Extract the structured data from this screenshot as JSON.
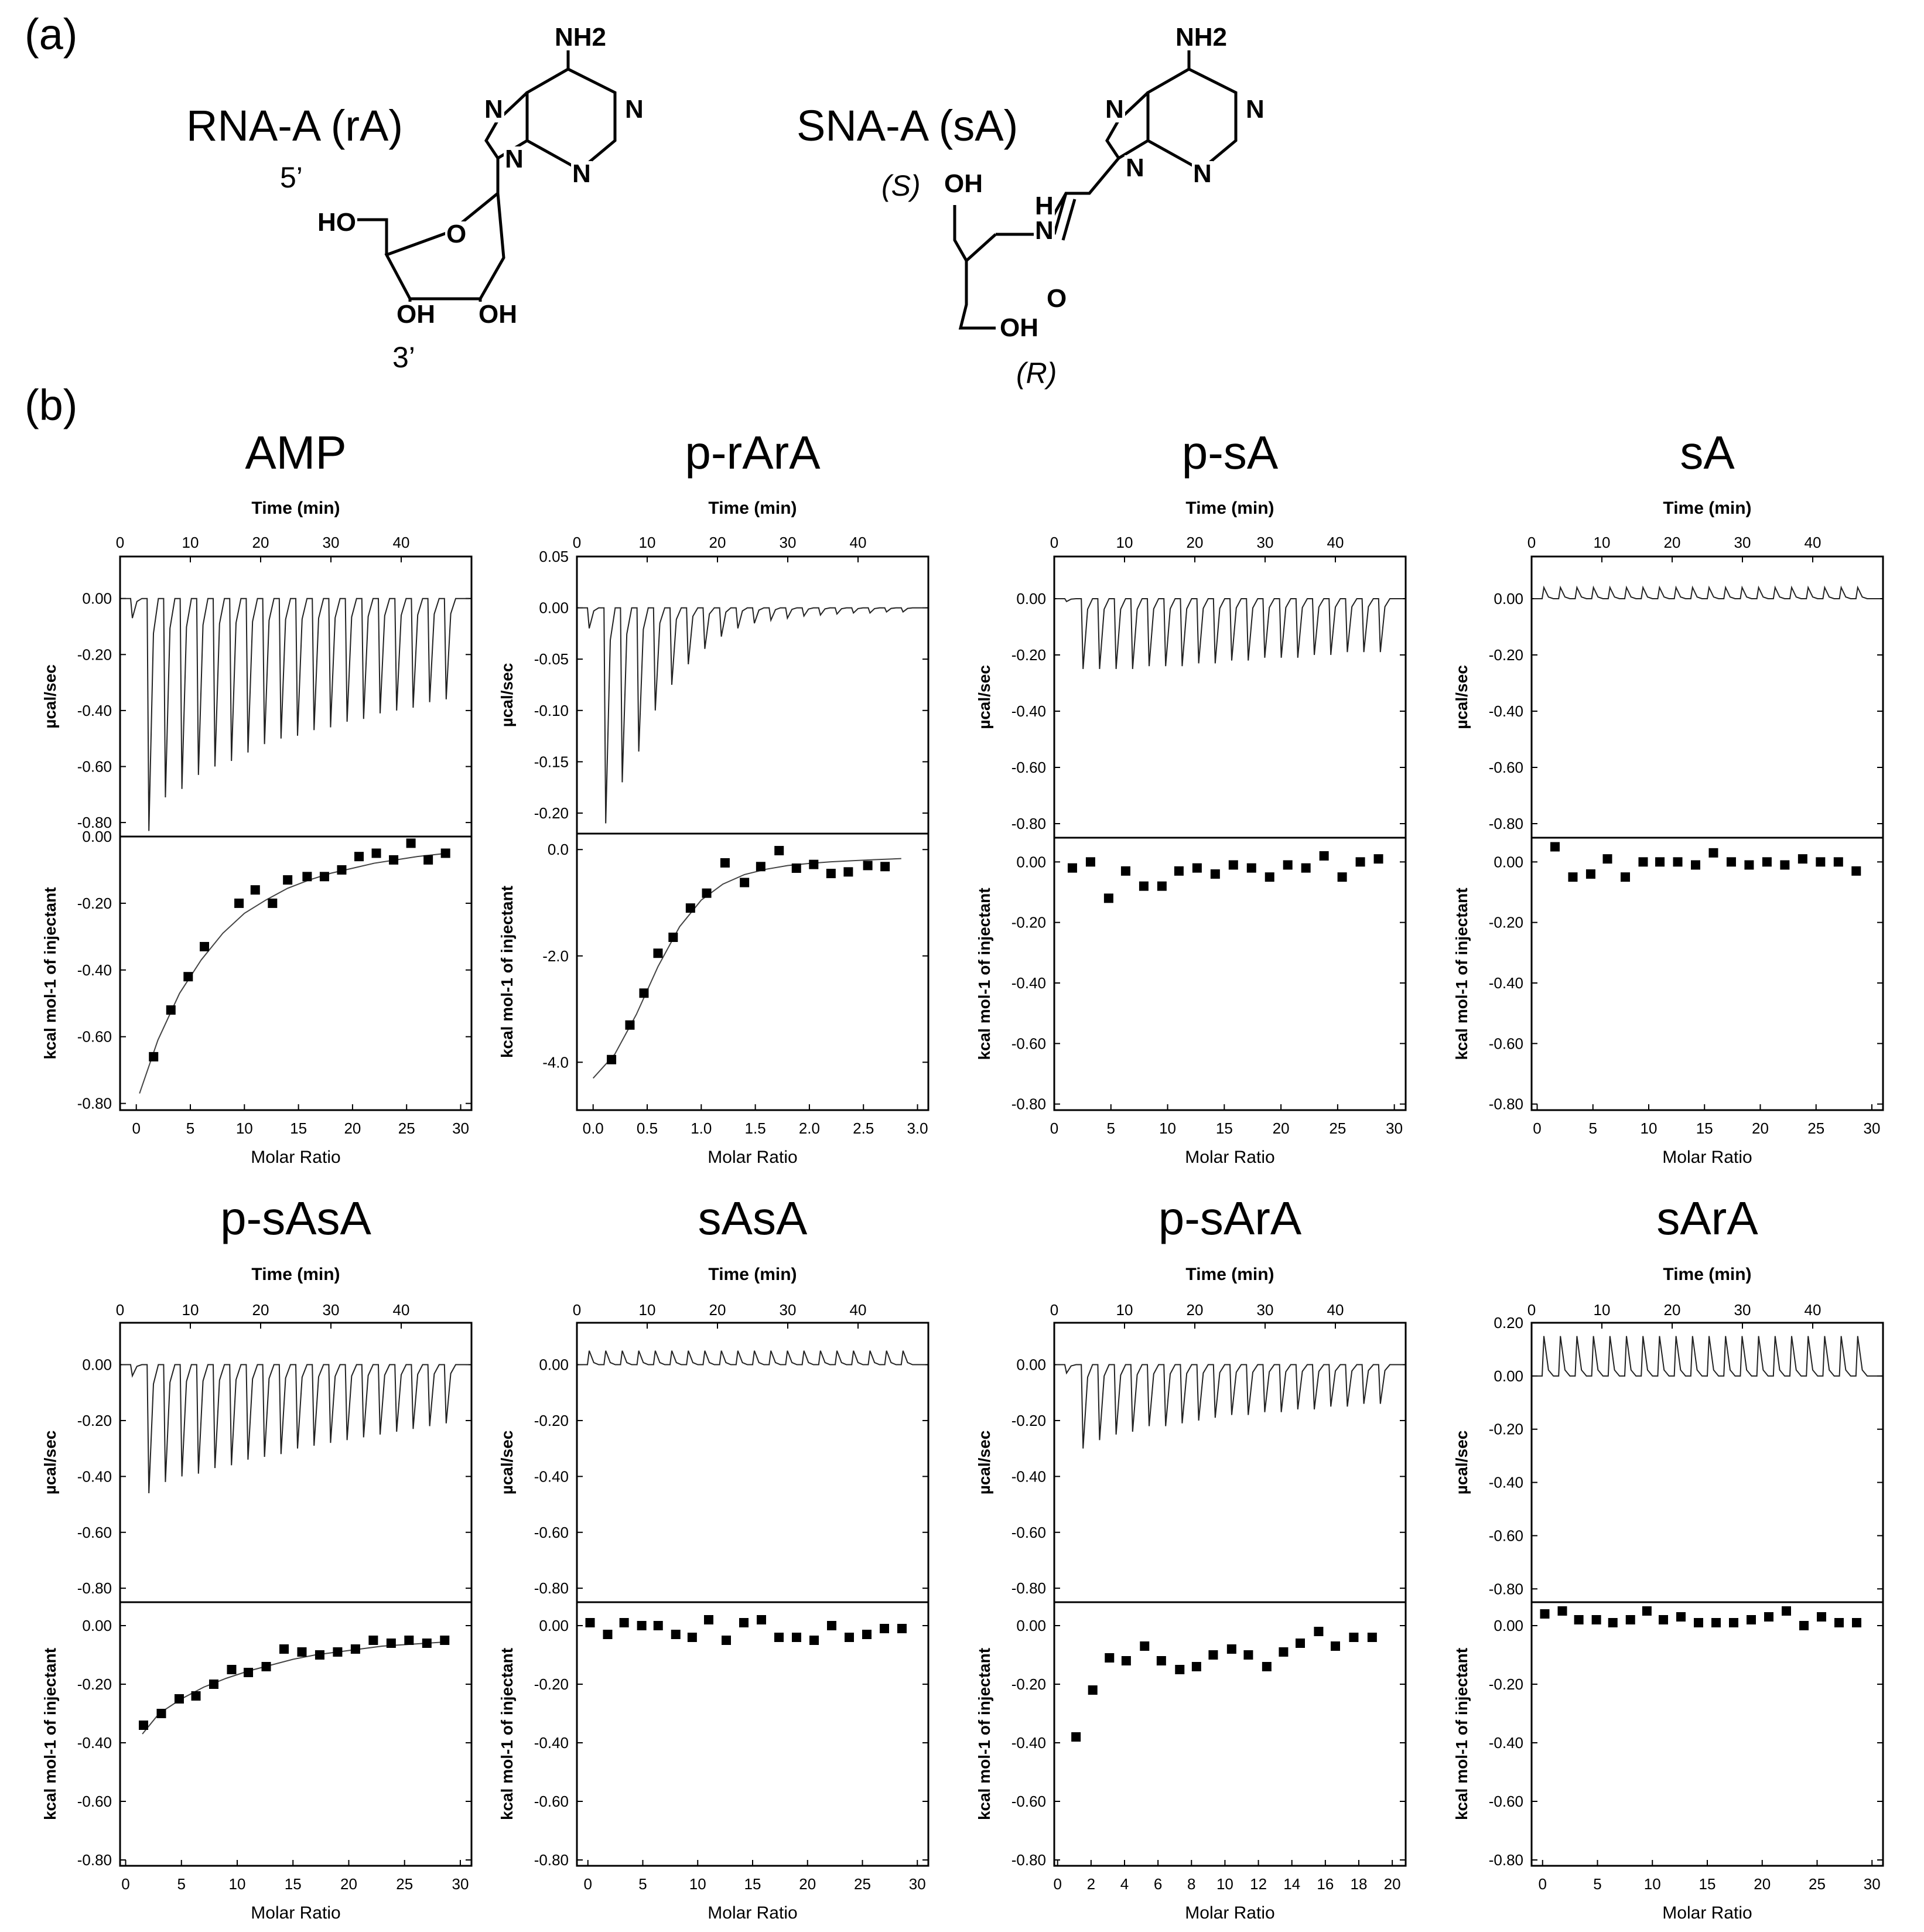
{
  "panel_labels": {
    "a": "(a)",
    "b": "(b)"
  },
  "molecules": {
    "rA": {
      "name": "RNA-A (rA)",
      "five_prime": "5’",
      "three_prime": "3’",
      "atoms": {
        "nh2": "NH2",
        "n7": "N",
        "n9": "N",
        "n1": "N",
        "n3": "N",
        "ho": "HO",
        "o_ring": "O",
        "oh3": "OH",
        "oh2": "OH"
      }
    },
    "sA": {
      "name": "SNA-A (sA)",
      "s_label": "(S)",
      "r_label": "(R)",
      "atoms": {
        "nh2": "NH2",
        "n7": "N",
        "n9": "N",
        "n1": "N",
        "n3": "N",
        "oh_top": "OH",
        "nh_h": "H",
        "nh_n": "N",
        "o_carbonyl": "O",
        "oh_bottom": "OH"
      }
    }
  },
  "chart_data": [
    {
      "type": "scatter",
      "title": "AMP",
      "top": {
        "xlabel": "Time (min)",
        "ylabel": "µcal/sec",
        "xlim": [
          0,
          50
        ],
        "ylim": [
          -0.85,
          0.15
        ],
        "xticks": [
          0,
          10,
          20,
          30,
          40
        ],
        "yticks": [
          "0.00",
          "-0.20",
          "-0.40",
          "-0.60",
          "-0.80"
        ],
        "peaks": [
          -0.07,
          -0.83,
          -0.71,
          -0.68,
          -0.63,
          -0.6,
          -0.58,
          -0.55,
          -0.52,
          -0.5,
          -0.49,
          -0.47,
          -0.46,
          -0.44,
          -0.43,
          -0.41,
          -0.4,
          -0.39,
          -0.37,
          -0.36
        ]
      },
      "bottom": {
        "xlabel": "Molar Ratio",
        "ylabel": "kcal mol-1 of injectant",
        "xlim": [
          -1.5,
          31
        ],
        "ylim": [
          -0.82,
          0.0
        ],
        "xticks": [
          0,
          5,
          10,
          15,
          20,
          25,
          30
        ],
        "yticks": [
          "0.00",
          "-0.20",
          "-0.40",
          "-0.60",
          "-0.80"
        ],
        "x": [
          1.6,
          3.2,
          4.8,
          6.3,
          9.5,
          11,
          12.6,
          14,
          15.8,
          17.4,
          19,
          20.6,
          22.2,
          23.8,
          25.4,
          27,
          28.6
        ],
        "y": [
          -0.66,
          -0.52,
          -0.42,
          -0.33,
          -0.2,
          -0.16,
          -0.2,
          -0.13,
          -0.12,
          -0.12,
          -0.1,
          -0.06,
          -0.05,
          -0.07,
          -0.02,
          -0.07,
          -0.05
        ],
        "fit_x": [
          0.3,
          2,
          4,
          6,
          8,
          10,
          12,
          14,
          16,
          18,
          20,
          22,
          24,
          26,
          28.8
        ],
        "fit_y": [
          -0.77,
          -0.61,
          -0.47,
          -0.37,
          -0.29,
          -0.23,
          -0.19,
          -0.155,
          -0.13,
          -0.11,
          -0.095,
          -0.08,
          -0.07,
          -0.06,
          -0.05
        ]
      }
    },
    {
      "type": "scatter",
      "title": "p-rArA",
      "top": {
        "xlabel": "Time (min)",
        "ylabel": "µcal/sec",
        "xlim": [
          0,
          50
        ],
        "ylim": [
          -0.22,
          0.05
        ],
        "xticks": [
          0,
          10,
          20,
          30,
          40
        ],
        "yticks": [
          "0.05",
          "0.00",
          "-0.05",
          "-0.10",
          "-0.15",
          "-0.20"
        ],
        "peaks": [
          -0.02,
          -0.21,
          -0.17,
          -0.14,
          -0.1,
          -0.075,
          -0.055,
          -0.04,
          -0.028,
          -0.02,
          -0.015,
          -0.012,
          -0.01,
          -0.008,
          -0.007,
          -0.006,
          -0.005,
          -0.005,
          -0.004,
          -0.004
        ]
      },
      "bottom": {
        "xlabel": "Molar Ratio",
        "ylabel": "kcal mol-1 of injectant",
        "xlim": [
          -0.15,
          3.1
        ],
        "ylim": [
          -4.9,
          0.3
        ],
        "xticks": [
          "0.0",
          "0.5",
          "1.0",
          "1.5",
          "2.0",
          "2.5",
          "3.0"
        ],
        "yticks": [
          "0.0",
          "-2.0",
          "-4.0"
        ],
        "x": [
          0.17,
          0.34,
          0.47,
          0.6,
          0.74,
          0.9,
          1.05,
          1.22,
          1.4,
          1.55,
          1.72,
          1.88,
          2.04,
          2.2,
          2.36,
          2.54,
          2.7
        ],
        "y": [
          -3.95,
          -3.3,
          -2.7,
          -1.95,
          -1.65,
          -1.1,
          -0.82,
          -0.25,
          -0.62,
          -0.32,
          -0.02,
          -0.35,
          -0.28,
          -0.45,
          -0.42,
          -0.3,
          -0.32
        ],
        "fit_x": [
          0.0,
          0.2,
          0.4,
          0.6,
          0.8,
          1.0,
          1.2,
          1.4,
          1.6,
          1.8,
          2.0,
          2.2,
          2.4,
          2.6,
          2.85
        ],
        "fit_y": [
          -4.3,
          -3.85,
          -3.1,
          -2.2,
          -1.45,
          -0.95,
          -0.65,
          -0.47,
          -0.37,
          -0.3,
          -0.26,
          -0.23,
          -0.21,
          -0.19,
          -0.17
        ]
      }
    },
    {
      "type": "scatter",
      "title": "p-sA",
      "top": {
        "xlabel": "Time (min)",
        "ylabel": "µcal/sec",
        "xlim": [
          0,
          50
        ],
        "ylim": [
          -0.85,
          0.15
        ],
        "xticks": [
          0,
          10,
          20,
          30,
          40
        ],
        "yticks": [
          "0.00",
          "-0.20",
          "-0.40",
          "-0.60",
          "-0.80"
        ],
        "peaks": [
          -0.01,
          -0.25,
          -0.25,
          -0.25,
          -0.25,
          -0.24,
          -0.24,
          -0.24,
          -0.23,
          -0.23,
          -0.22,
          -0.22,
          -0.21,
          -0.21,
          -0.21,
          -0.2,
          -0.2,
          -0.19,
          -0.19,
          -0.19
        ]
      },
      "bottom": {
        "xlabel": "Molar Ratio",
        "ylabel": "kcal mol-1 of injectant",
        "xlim": [
          0,
          31
        ],
        "ylim": [
          -0.82,
          0.08
        ],
        "xticks": [
          0,
          5,
          10,
          15,
          20,
          25,
          30
        ],
        "yticks": [
          "0.00",
          "-0.20",
          "-0.40",
          "-0.60",
          "-0.80"
        ],
        "x": [
          1.6,
          3.2,
          4.8,
          6.3,
          7.9,
          9.5,
          11,
          12.6,
          14.2,
          15.8,
          17.4,
          19,
          20.6,
          22.2,
          23.8,
          25.4,
          27,
          28.6
        ],
        "y": [
          -0.02,
          0.0,
          -0.12,
          -0.03,
          -0.08,
          -0.08,
          -0.03,
          -0.02,
          -0.04,
          -0.01,
          -0.02,
          -0.05,
          -0.01,
          -0.02,
          0.02,
          -0.05,
          0.0,
          0.01
        ]
      }
    },
    {
      "type": "scatter",
      "title": "sA",
      "top": {
        "xlabel": "Time (min)",
        "ylabel": "µcal/sec",
        "xlim": [
          0,
          50
        ],
        "ylim": [
          -0.85,
          0.15
        ],
        "xticks": [
          0,
          10,
          20,
          30,
          40
        ],
        "yticks": [
          "0.00",
          "-0.20",
          "-0.40",
          "-0.60",
          "-0.80"
        ],
        "peaks": [
          0.04,
          0.04,
          0.04,
          0.04,
          0.04,
          0.04,
          0.04,
          0.04,
          0.04,
          0.04,
          0.04,
          0.04,
          0.04,
          0.04,
          0.04,
          0.04,
          0.04,
          0.04,
          0.04,
          0.04
        ]
      },
      "bottom": {
        "xlabel": "Molar Ratio",
        "ylabel": "kcal mol-1 of injectant",
        "xlim": [
          -0.5,
          31
        ],
        "ylim": [
          -0.82,
          0.08
        ],
        "xticks": [
          0,
          5,
          10,
          15,
          20,
          25,
          30
        ],
        "yticks": [
          "0.00",
          "-0.20",
          "-0.40",
          "-0.60",
          "-0.80"
        ],
        "x": [
          1.6,
          3.2,
          4.8,
          6.3,
          7.9,
          9.5,
          11,
          12.6,
          14.2,
          15.8,
          17.4,
          19,
          20.6,
          22.2,
          23.8,
          25.4,
          27,
          28.6
        ],
        "y": [
          0.05,
          -0.05,
          -0.04,
          0.01,
          -0.05,
          0.0,
          0.0,
          0.0,
          -0.01,
          0.03,
          0.0,
          -0.01,
          0.0,
          -0.01,
          0.01,
          0.0,
          0.0,
          -0.03
        ]
      }
    },
    {
      "type": "scatter",
      "title": "p-sAsA",
      "top": {
        "xlabel": "Time (min)",
        "ylabel": "µcal/sec",
        "xlim": [
          0,
          50
        ],
        "ylim": [
          -0.85,
          0.15
        ],
        "xticks": [
          0,
          10,
          20,
          30,
          40
        ],
        "yticks": [
          "0.00",
          "-0.20",
          "-0.40",
          "-0.60",
          "-0.80"
        ],
        "peaks": [
          -0.04,
          -0.46,
          -0.42,
          -0.4,
          -0.39,
          -0.37,
          -0.36,
          -0.34,
          -0.33,
          -0.32,
          -0.3,
          -0.29,
          -0.28,
          -0.27,
          -0.26,
          -0.25,
          -0.24,
          -0.23,
          -0.22,
          -0.21
        ]
      },
      "bottom": {
        "xlabel": "Molar Ratio",
        "ylabel": "kcal mol-1 of injectant",
        "xlim": [
          -0.5,
          31
        ],
        "ylim": [
          -0.82,
          0.08
        ],
        "xticks": [
          0,
          5,
          10,
          15,
          20,
          25,
          30
        ],
        "yticks": [
          "0.00",
          "-0.20",
          "-0.40",
          "-0.60",
          "-0.80"
        ],
        "x": [
          1.6,
          3.2,
          4.8,
          6.3,
          7.9,
          9.5,
          11,
          12.6,
          14.2,
          15.8,
          17.4,
          19,
          20.6,
          22.2,
          23.8,
          25.4,
          27,
          28.6
        ],
        "y": [
          -0.34,
          -0.3,
          -0.25,
          -0.24,
          -0.2,
          -0.15,
          -0.16,
          -0.14,
          -0.08,
          -0.09,
          -0.1,
          -0.09,
          -0.08,
          -0.05,
          -0.06,
          -0.05,
          -0.06,
          -0.05
        ],
        "fit_x": [
          1.5,
          3,
          5,
          7,
          9,
          11,
          13,
          15,
          17,
          19,
          21,
          23,
          25,
          27,
          29
        ],
        "fit_y": [
          -0.37,
          -0.3,
          -0.25,
          -0.21,
          -0.18,
          -0.155,
          -0.135,
          -0.115,
          -0.1,
          -0.09,
          -0.08,
          -0.07,
          -0.065,
          -0.06,
          -0.055
        ]
      }
    },
    {
      "type": "scatter",
      "title": "sAsA",
      "top": {
        "xlabel": "Time (min)",
        "ylabel": "µcal/sec",
        "xlim": [
          0,
          50
        ],
        "ylim": [
          -0.85,
          0.15
        ],
        "xticks": [
          0,
          10,
          20,
          30,
          40
        ],
        "yticks": [
          "0.00",
          "-0.20",
          "-0.40",
          "-0.60",
          "-0.80"
        ],
        "peaks": [
          0.05,
          0.05,
          0.05,
          0.05,
          0.05,
          0.05,
          0.05,
          0.05,
          0.05,
          0.05,
          0.05,
          0.05,
          0.05,
          0.05,
          0.05,
          0.05,
          0.05,
          0.05,
          0.05,
          0.05
        ]
      },
      "bottom": {
        "xlabel": "Molar Ratio",
        "ylabel": "kcal mol-1 of injectant",
        "xlim": [
          -1,
          31
        ],
        "ylim": [
          -0.82,
          0.08
        ],
        "xticks": [
          0,
          5,
          10,
          15,
          20,
          25,
          30
        ],
        "yticks": [
          "0.00",
          "-0.20",
          "-0.40",
          "-0.60",
          "-0.80"
        ],
        "x": [
          0.2,
          1.8,
          3.3,
          4.9,
          6.4,
          8,
          9.5,
          11,
          12.6,
          14.2,
          15.8,
          17.4,
          19,
          20.6,
          22.2,
          23.8,
          25.4,
          27,
          28.6
        ],
        "y": [
          0.01,
          -0.03,
          0.01,
          0.0,
          0.0,
          -0.03,
          -0.04,
          0.02,
          -0.05,
          0.01,
          0.02,
          -0.04,
          -0.04,
          -0.05,
          0.0,
          -0.04,
          -0.03,
          -0.01,
          -0.01
        ]
      }
    },
    {
      "type": "scatter",
      "title": "p-sArA",
      "top": {
        "xlabel": "Time (min)",
        "ylabel": "µcal/sec",
        "xlim": [
          0,
          50
        ],
        "ylim": [
          -0.85,
          0.15
        ],
        "xticks": [
          0,
          10,
          20,
          30,
          40
        ],
        "yticks": [
          "0.00",
          "-0.20",
          "-0.40",
          "-0.60",
          "-0.80"
        ],
        "peaks": [
          -0.03,
          -0.3,
          -0.27,
          -0.25,
          -0.24,
          -0.22,
          -0.22,
          -0.21,
          -0.2,
          -0.19,
          -0.18,
          -0.18,
          -0.17,
          -0.17,
          -0.16,
          -0.16,
          -0.15,
          -0.15,
          -0.14,
          -0.14
        ]
      },
      "bottom": {
        "xlabel": "Molar Ratio",
        "ylabel": "kcal mol-1 of injectant",
        "xlim": [
          -0.2,
          20.8
        ],
        "ylim": [
          -0.82,
          0.08
        ],
        "xticks": [
          0,
          2,
          4,
          6,
          8,
          10,
          12,
          14,
          16,
          18,
          20
        ],
        "yticks": [
          "0.00",
          "-0.20",
          "-0.40",
          "-0.60",
          "-0.80"
        ],
        "x": [
          1.1,
          2.1,
          3.1,
          4.1,
          5.2,
          6.2,
          7.3,
          8.3,
          9.3,
          10.4,
          11.4,
          12.5,
          13.5,
          14.5,
          15.6,
          16.6,
          17.7,
          18.8
        ],
        "y": [
          -0.38,
          -0.22,
          -0.11,
          -0.12,
          -0.07,
          -0.12,
          -0.15,
          -0.14,
          -0.1,
          -0.08,
          -0.1,
          -0.14,
          -0.09,
          -0.06,
          -0.02,
          -0.07,
          -0.04,
          -0.04
        ]
      }
    },
    {
      "type": "scatter",
      "title": "sArA",
      "top": {
        "xlabel": "Time (min)",
        "ylabel": "µcal/sec",
        "xlim": [
          0,
          50
        ],
        "ylim": [
          -0.85,
          0.2
        ],
        "xticks": [
          0,
          10,
          20,
          30,
          40
        ],
        "yticks": [
          "0.20",
          "0.00",
          "-0.20",
          "-0.40",
          "-0.60",
          "-0.80"
        ],
        "peaks": [
          0.15,
          0.15,
          0.15,
          0.15,
          0.15,
          0.15,
          0.15,
          0.15,
          0.15,
          0.15,
          0.15,
          0.15,
          0.15,
          0.15,
          0.15,
          0.15,
          0.15,
          0.15,
          0.15,
          0.15
        ]
      },
      "bottom": {
        "xlabel": "Molar Ratio",
        "ylabel": "kcal mol-1 of injectant",
        "xlim": [
          -1,
          31
        ],
        "ylim": [
          -0.82,
          0.08
        ],
        "xticks": [
          0,
          5,
          10,
          15,
          20,
          25,
          30
        ],
        "yticks": [
          "0.00",
          "-0.20",
          "-0.40",
          "-0.60",
          "-0.80"
        ],
        "x": [
          0.2,
          1.8,
          3.3,
          4.9,
          6.4,
          8,
          9.5,
          11,
          12.6,
          14.2,
          15.8,
          17.4,
          19,
          20.6,
          22.2,
          23.8,
          25.4,
          27,
          28.6
        ],
        "y": [
          0.04,
          0.05,
          0.02,
          0.02,
          0.01,
          0.02,
          0.05,
          0.02,
          0.03,
          0.01,
          0.01,
          0.01,
          0.02,
          0.03,
          0.05,
          0.0,
          0.03,
          0.01,
          0.01
        ]
      }
    }
  ]
}
